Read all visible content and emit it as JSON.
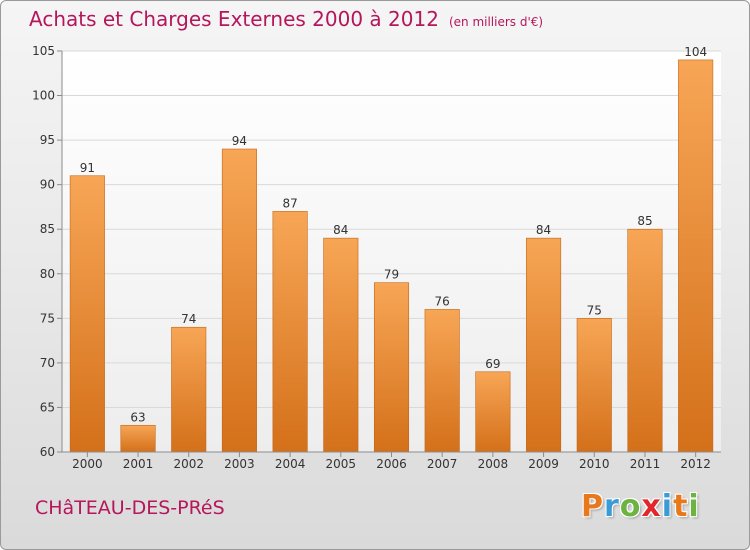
{
  "header": {
    "title": "Achats et Charges Externes 2000 à 2012",
    "unit": "(en milliers d'€)"
  },
  "footer": {
    "commune": "CHâTEAU-DES-PRéS",
    "brand_letters": [
      "P",
      "r",
      "o",
      "x",
      "i",
      "t",
      "i"
    ],
    "brand_colors": [
      "#e8781c",
      "#3a9bd6",
      "#6db33f",
      "#e3262a",
      "#3a9bd6",
      "#e8781c",
      "#6db33f"
    ]
  },
  "chart_data": {
    "type": "bar",
    "title": "Achats et Charges Externes 2000 à 2012",
    "subtitle": "(en milliers d'€)",
    "xlabel": "",
    "ylabel": "",
    "categories": [
      "2000",
      "2001",
      "2002",
      "2003",
      "2004",
      "2005",
      "2006",
      "2007",
      "2008",
      "2009",
      "2010",
      "2011",
      "2012"
    ],
    "values": [
      91,
      63,
      74,
      94,
      87,
      84,
      79,
      76,
      69,
      84,
      75,
      85,
      104
    ],
    "data_labels": [
      "91",
      "63",
      "74",
      "94",
      "87",
      "84",
      "79",
      "76",
      "69",
      "84",
      "75",
      "85",
      "104"
    ],
    "ylim": [
      60,
      105
    ],
    "yticks": [
      60,
      65,
      70,
      75,
      80,
      85,
      90,
      95,
      100,
      105
    ],
    "ytick_labels": [
      "60",
      "65",
      "70",
      "75",
      "80",
      "85",
      "90",
      "95",
      "100",
      "105"
    ],
    "grid": true,
    "legend": "none",
    "colors": {
      "bar_top": "#f7a656",
      "bar_bottom": "#d4701a",
      "bar_edge": "#c2661a",
      "grid": "#d9d9d9",
      "axis": "#8c8c8c",
      "text": "#333333",
      "title": "#b5165c"
    }
  }
}
